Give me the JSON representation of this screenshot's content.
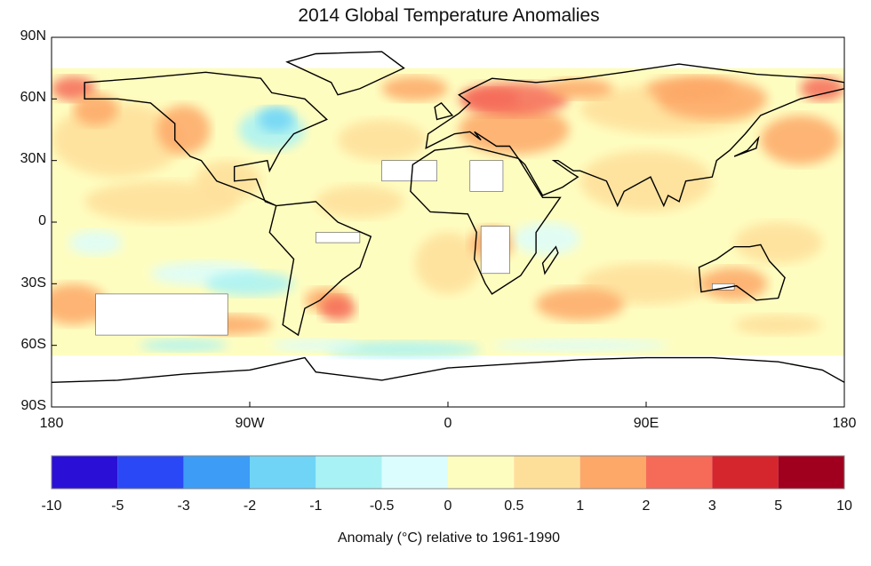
{
  "chart_data": {
    "type": "heatmap",
    "title": "2014 Global Temperature Anomalies",
    "xlabel": "",
    "ylabel": "",
    "x_ticks": [
      "180",
      "90W",
      "0",
      "90E",
      "180"
    ],
    "y_ticks": [
      "90N",
      "60N",
      "30N",
      "0",
      "30S",
      "60S",
      "90S"
    ],
    "xlim": [
      -180,
      180
    ],
    "ylim": [
      -90,
      90
    ],
    "colorbar": {
      "label": "Anomaly (°C) relative to 1961-1990",
      "levels": [
        "-10",
        "-5",
        "-3",
        "-2",
        "-1",
        "-0.5",
        "0",
        "0.5",
        "1",
        "2",
        "3",
        "5",
        "10"
      ],
      "colors": [
        "#2a0fd6",
        "#2a48f5",
        "#3d9cf5",
        "#70d4f7",
        "#a8f2f5",
        "#dcfdfd",
        "#fefdc0",
        "#fedf9a",
        "#fda868",
        "#f56b58",
        "#d5262e",
        "#a0001e"
      ]
    },
    "no_data_color": "#ffffff"
  }
}
